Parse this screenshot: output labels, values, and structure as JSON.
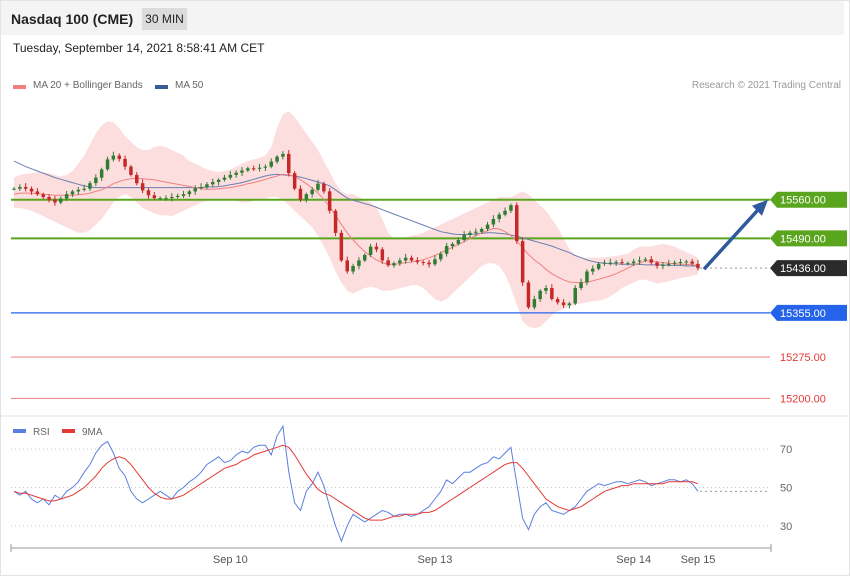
{
  "header": {
    "title": "Nasdaq 100 (CME)",
    "timeframe": "30 MIN"
  },
  "date_line": "Tuesday, September 14, 2021 8:58:41 AM CET",
  "legend": {
    "ma20": {
      "label": "MA 20 + Bollinger Bands",
      "color": "#f08080"
    },
    "ma50": {
      "label": "MA 50",
      "color": "#3a5a98"
    }
  },
  "credit": "Research © 2021 Trading Central",
  "colors": {
    "up": "#2e7d32",
    "down": "#c62828",
    "band": "#fdd8d8",
    "level_green": "#5aa51e",
    "level_blue": "#2563eb",
    "level_red": "#ef8d8d",
    "arrow": "#2f5b9e",
    "rsi": "#5b7fe0",
    "rsi_ma": "#e53935"
  },
  "chart_data": [
    {
      "type": "candlestick",
      "y_range": [
        15170,
        15795
      ],
      "levels": [
        {
          "value": 15560.0,
          "label": "15560.00",
          "style": "green"
        },
        {
          "value": 15490.0,
          "label": "15490.00",
          "style": "green"
        },
        {
          "value": 15436.0,
          "label": "15436.00",
          "style": "current"
        },
        {
          "value": 15355.0,
          "label": "15355.00",
          "style": "blue"
        },
        {
          "value": 15275.0,
          "label": "15275.00",
          "style": "red"
        },
        {
          "value": 15200.0,
          "label": "15200.00",
          "style": "red"
        }
      ],
      "x_ticks": [
        "Sep 10",
        "Sep 13",
        "Sep 14",
        "Sep 15"
      ],
      "close": [
        15580,
        15583,
        15580,
        15575,
        15570,
        15565,
        15560,
        15555,
        15562,
        15570,
        15575,
        15578,
        15580,
        15590,
        15600,
        15615,
        15633,
        15640,
        15634,
        15620,
        15605,
        15590,
        15577,
        15568,
        15563,
        15563,
        15563,
        15565,
        15567,
        15570,
        15575,
        15581,
        15583,
        15588,
        15592,
        15596,
        15600,
        15605,
        15609,
        15613,
        15617,
        15616,
        15618,
        15620,
        15629,
        15638,
        15643,
        15608,
        15580,
        15560,
        15570,
        15578,
        15589,
        15575,
        15540,
        15500,
        15450,
        15430,
        15440,
        15450,
        15460,
        15475,
        15470,
        15450,
        15441,
        15445,
        15450,
        15455,
        15450,
        15447,
        15446,
        15443,
        15452,
        15462,
        15476,
        15480,
        15487,
        15496,
        15500,
        15502,
        15507,
        15515,
        15525,
        15533,
        15540,
        15550,
        15485,
        15410,
        15365,
        15380,
        15395,
        15400,
        15380,
        15374,
        15369,
        15372,
        15400,
        15410,
        15430,
        15435,
        15444,
        15446,
        15446,
        15447,
        15445,
        15445,
        15448,
        15450,
        15452,
        15446,
        15440,
        15442,
        15444,
        15446,
        15447,
        15448,
        15444,
        15436
      ],
      "ma20": [
        15570,
        15572,
        15572,
        15572,
        15571,
        15570,
        15569,
        15568,
        15568,
        15568,
        15568,
        15569,
        15570,
        15572,
        15575,
        15578,
        15583,
        15589,
        15593,
        15596,
        15598,
        15599,
        15598,
        15597,
        15596,
        15594,
        15592,
        15590,
        15588,
        15586,
        15584,
        15582,
        15580,
        15579,
        15579,
        15580,
        15581,
        15582,
        15584,
        15586,
        15589,
        15591,
        15594,
        15597,
        15600,
        15603,
        15606,
        15605,
        15602,
        15596,
        15589,
        15581,
        15572,
        15561,
        15547,
        15532,
        15515,
        15500,
        15487,
        15476,
        15466,
        15458,
        15451,
        15446,
        15443,
        15443,
        15444,
        15446,
        15447,
        15449,
        15451,
        15455,
        15459,
        15464,
        15469,
        15474,
        15479,
        15484,
        15490,
        15495,
        15500,
        15504,
        15508,
        15507,
        15502,
        15495,
        15485,
        15473,
        15461,
        15451,
        15443,
        15434,
        15426,
        15420,
        15415,
        15411,
        15410,
        15410,
        15411,
        15413,
        15416,
        15419,
        15422,
        15426,
        15431,
        15436,
        15442,
        15445,
        15449,
        15449,
        15447,
        15446,
        15445,
        15444,
        15443,
        15443,
        15442,
        15441
      ],
      "bb_upper": [
        15600,
        15605,
        15607,
        15608,
        15610,
        15610,
        15608,
        15605,
        15602,
        15605,
        15612,
        15625,
        15640,
        15660,
        15680,
        15695,
        15702,
        15700,
        15690,
        15675,
        15665,
        15655,
        15650,
        15650,
        15655,
        15658,
        15655,
        15650,
        15645,
        15640,
        15630,
        15625,
        15620,
        15615,
        15612,
        15610,
        15612,
        15615,
        15620,
        15625,
        15630,
        15633,
        15636,
        15640,
        15655,
        15690,
        15715,
        15720,
        15710,
        15695,
        15680,
        15665,
        15650,
        15630,
        15610,
        15590,
        15575,
        15570,
        15570,
        15565,
        15560,
        15555,
        15545,
        15525,
        15500,
        15490,
        15490,
        15492,
        15495,
        15497,
        15500,
        15505,
        15510,
        15515,
        15520,
        15525,
        15530,
        15535,
        15540,
        15545,
        15550,
        15555,
        15560,
        15565,
        15565,
        15565,
        15570,
        15575,
        15570,
        15560,
        15550,
        15540,
        15525,
        15510,
        15490,
        15470,
        15460,
        15455,
        15455,
        15455,
        15455,
        15456,
        15457,
        15458,
        15460,
        15462,
        15470,
        15475,
        15475,
        15475,
        15478,
        15480,
        15478,
        15475,
        15470,
        15465,
        15460,
        15455
      ],
      "bb_lower": [
        15545,
        15545,
        15543,
        15540,
        15535,
        15530,
        15525,
        15520,
        15515,
        15510,
        15505,
        15500,
        15500,
        15505,
        15515,
        15525,
        15540,
        15555,
        15565,
        15570,
        15565,
        15555,
        15545,
        15540,
        15535,
        15532,
        15532,
        15530,
        15535,
        15540,
        15545,
        15550,
        15555,
        15558,
        15560,
        15562,
        15562,
        15560,
        15558,
        15555,
        15555,
        15558,
        15560,
        15562,
        15565,
        15565,
        15560,
        15550,
        15540,
        15530,
        15520,
        15510,
        15495,
        15475,
        15455,
        15430,
        15410,
        15395,
        15390,
        15395,
        15400,
        15402,
        15400,
        15395,
        15395,
        15397,
        15400,
        15402,
        15405,
        15405,
        15400,
        15390,
        15380,
        15375,
        15380,
        15390,
        15400,
        15410,
        15420,
        15430,
        15440,
        15445,
        15445,
        15440,
        15425,
        15400,
        15370,
        15340,
        15330,
        15327,
        15330,
        15340,
        15350,
        15358,
        15362,
        15366,
        15370,
        15372,
        15374,
        15376,
        15377,
        15380,
        15385,
        15392,
        15400,
        15405,
        15410,
        15415,
        15415,
        15412,
        15408,
        15410,
        15412,
        15415,
        15418,
        15420,
        15422,
        15425
      ],
      "ma50": [
        15630,
        15625,
        15620,
        15616,
        15612,
        15608,
        15604,
        15600,
        15597,
        15594,
        15591,
        15588,
        15585,
        15583,
        15582,
        15582,
        15582,
        15582,
        15582,
        15582,
        15582,
        15582,
        15582,
        15582,
        15582,
        15582,
        15582,
        15582,
        15582,
        15582,
        15582,
        15582,
        15582,
        15583,
        15583,
        15584,
        15585,
        15587,
        15589,
        15591,
        15594,
        15597,
        15600,
        15603,
        15605,
        15606,
        15605,
        15604,
        15603,
        15601,
        15598,
        15595,
        15592,
        15589,
        15585,
        15578,
        15570,
        15563,
        15559,
        15556,
        15553,
        15550,
        15546,
        15542,
        15538,
        15534,
        15530,
        15526,
        15522,
        15518,
        15514,
        15510,
        15506,
        15502,
        15500,
        15498,
        15497,
        15497,
        15497,
        15498,
        15499,
        15500,
        15500,
        15499,
        15498,
        15496,
        15494,
        15491,
        15488,
        15485,
        15482,
        15479,
        15476,
        15472,
        15468,
        15464,
        15459,
        15455,
        15451,
        15448,
        15446,
        15445,
        15444,
        15444,
        15443,
        15443,
        15443,
        15443,
        15442,
        15442,
        15442,
        15442,
        15441,
        15441,
        15441,
        15440,
        15440,
        15440
      ]
    },
    {
      "type": "line",
      "name": "RSI",
      "y_range": [
        20,
        80
      ],
      "y_ticks": [
        70,
        50,
        30
      ],
      "series": [
        {
          "name": "RSI",
          "values": [
            48,
            46,
            48,
            44,
            42,
            44,
            41,
            46,
            44,
            48,
            50,
            53,
            58,
            62,
            68,
            72,
            74,
            68,
            60,
            56,
            48,
            44,
            42,
            44,
            46,
            48,
            46,
            44,
            48,
            50,
            53,
            55,
            58,
            62,
            64,
            66,
            63,
            64,
            67,
            69,
            68,
            71,
            72,
            72,
            67,
            77,
            82,
            58,
            42,
            38,
            48,
            52,
            58,
            51,
            40,
            30,
            22,
            30,
            36,
            34,
            32,
            34,
            36,
            38,
            37,
            35,
            36,
            36,
            35,
            36,
            38,
            40,
            44,
            48,
            54,
            52,
            55,
            58,
            58,
            60,
            62,
            63,
            66,
            65,
            68,
            71,
            52,
            34,
            28,
            36,
            40,
            42,
            38,
            37,
            36,
            38,
            40,
            44,
            48,
            50,
            52,
            51,
            52,
            53,
            53,
            52,
            53,
            54,
            53,
            51,
            52,
            53,
            54,
            54,
            53,
            54,
            52,
            48
          ]
        },
        {
          "name": "9MA",
          "values": [
            48,
            47,
            47,
            46,
            45,
            44,
            43,
            43,
            44,
            45,
            46,
            48,
            50,
            53,
            56,
            60,
            63,
            65,
            66,
            65,
            62,
            58,
            54,
            50,
            47,
            45,
            44,
            44,
            45,
            46,
            48,
            50,
            52,
            54,
            56,
            58,
            60,
            61,
            62,
            64,
            65,
            67,
            68,
            69,
            70,
            71,
            72,
            71,
            67,
            62,
            57,
            53,
            49,
            47,
            46,
            44,
            42,
            40,
            38,
            36,
            34,
            33,
            33,
            33,
            34,
            35,
            35,
            36,
            36,
            36,
            37,
            37,
            38,
            40,
            42,
            44,
            46,
            48,
            50,
            52,
            54,
            56,
            58,
            60,
            62,
            63,
            63,
            60,
            56,
            52,
            48,
            44,
            42,
            40,
            39,
            38,
            39,
            40,
            42,
            44,
            46,
            48,
            49,
            50,
            51,
            51,
            52,
            52,
            52,
            52,
            52,
            52,
            53,
            53,
            53,
            53,
            53,
            52
          ]
        }
      ],
      "x_ticks": [
        "Sep 10",
        "Sep 13",
        "Sep 14",
        "Sep 15"
      ]
    }
  ]
}
